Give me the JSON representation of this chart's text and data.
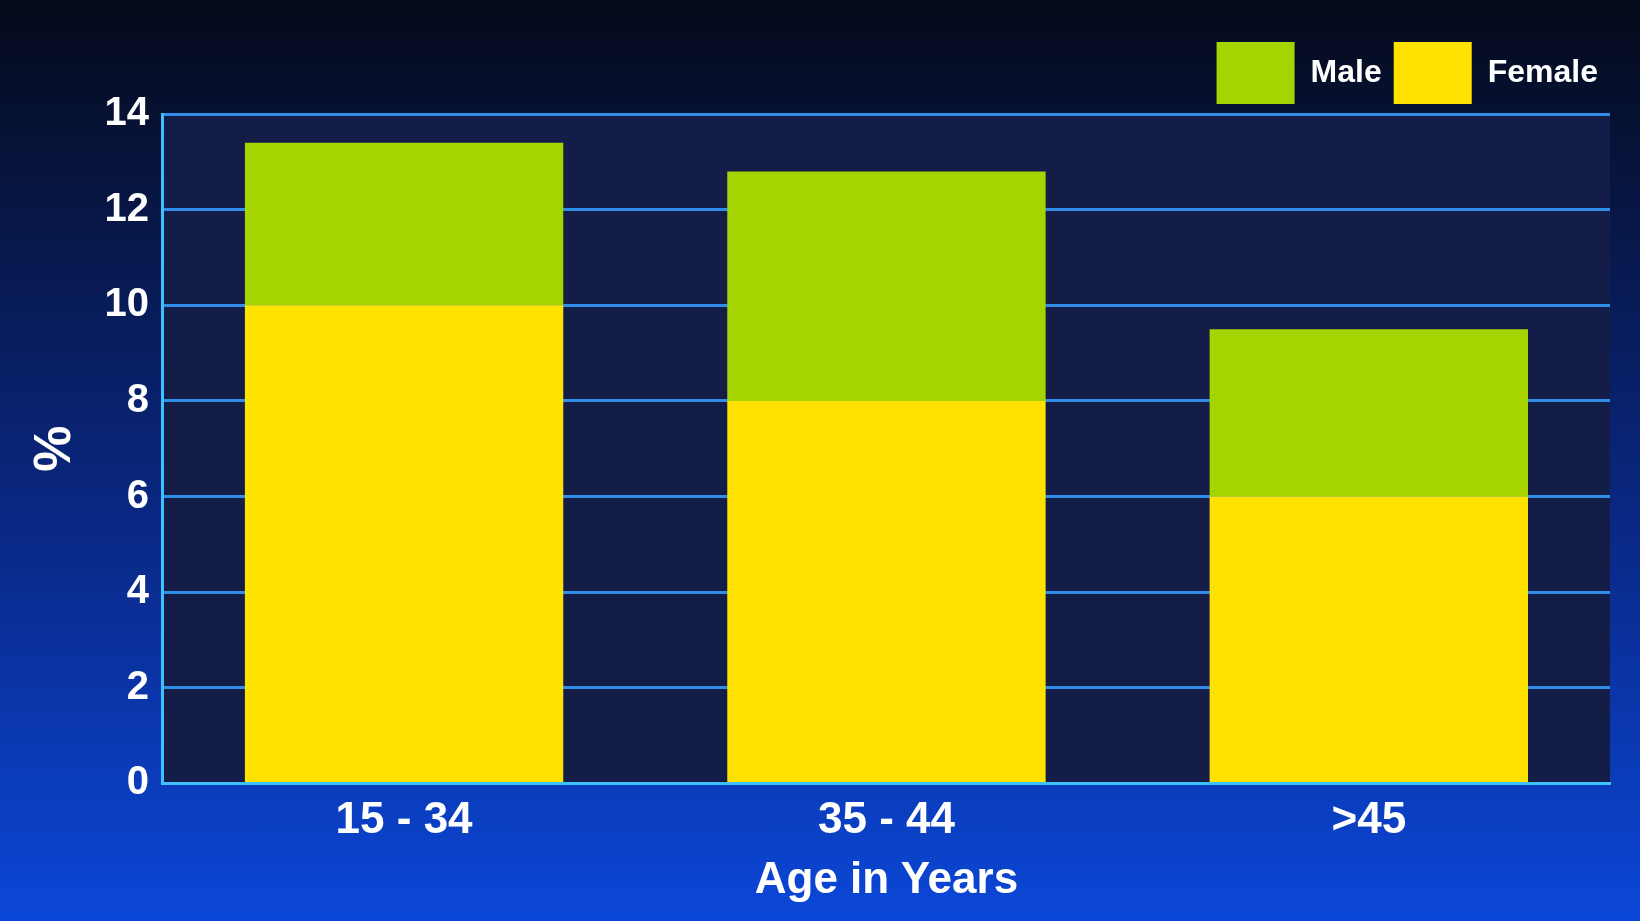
{
  "chart_data": {
    "type": "bar",
    "xlabel": "Age in Years",
    "ylabel": "%",
    "categories": [
      "15 - 34",
      "35 - 44",
      ">45"
    ],
    "stacked": true,
    "series": [
      {
        "name": "Female",
        "color": "#ffe200",
        "values": [
          10,
          8,
          6
        ]
      },
      {
        "name": "Male",
        "color": "#a6d400",
        "values": [
          3.4,
          4.8,
          3.5
        ]
      }
    ],
    "ylim": [
      0,
      14
    ],
    "yticks": [
      0,
      2,
      4,
      6,
      8,
      10,
      12,
      14
    ],
    "grid": "y",
    "legend": "top right"
  }
}
